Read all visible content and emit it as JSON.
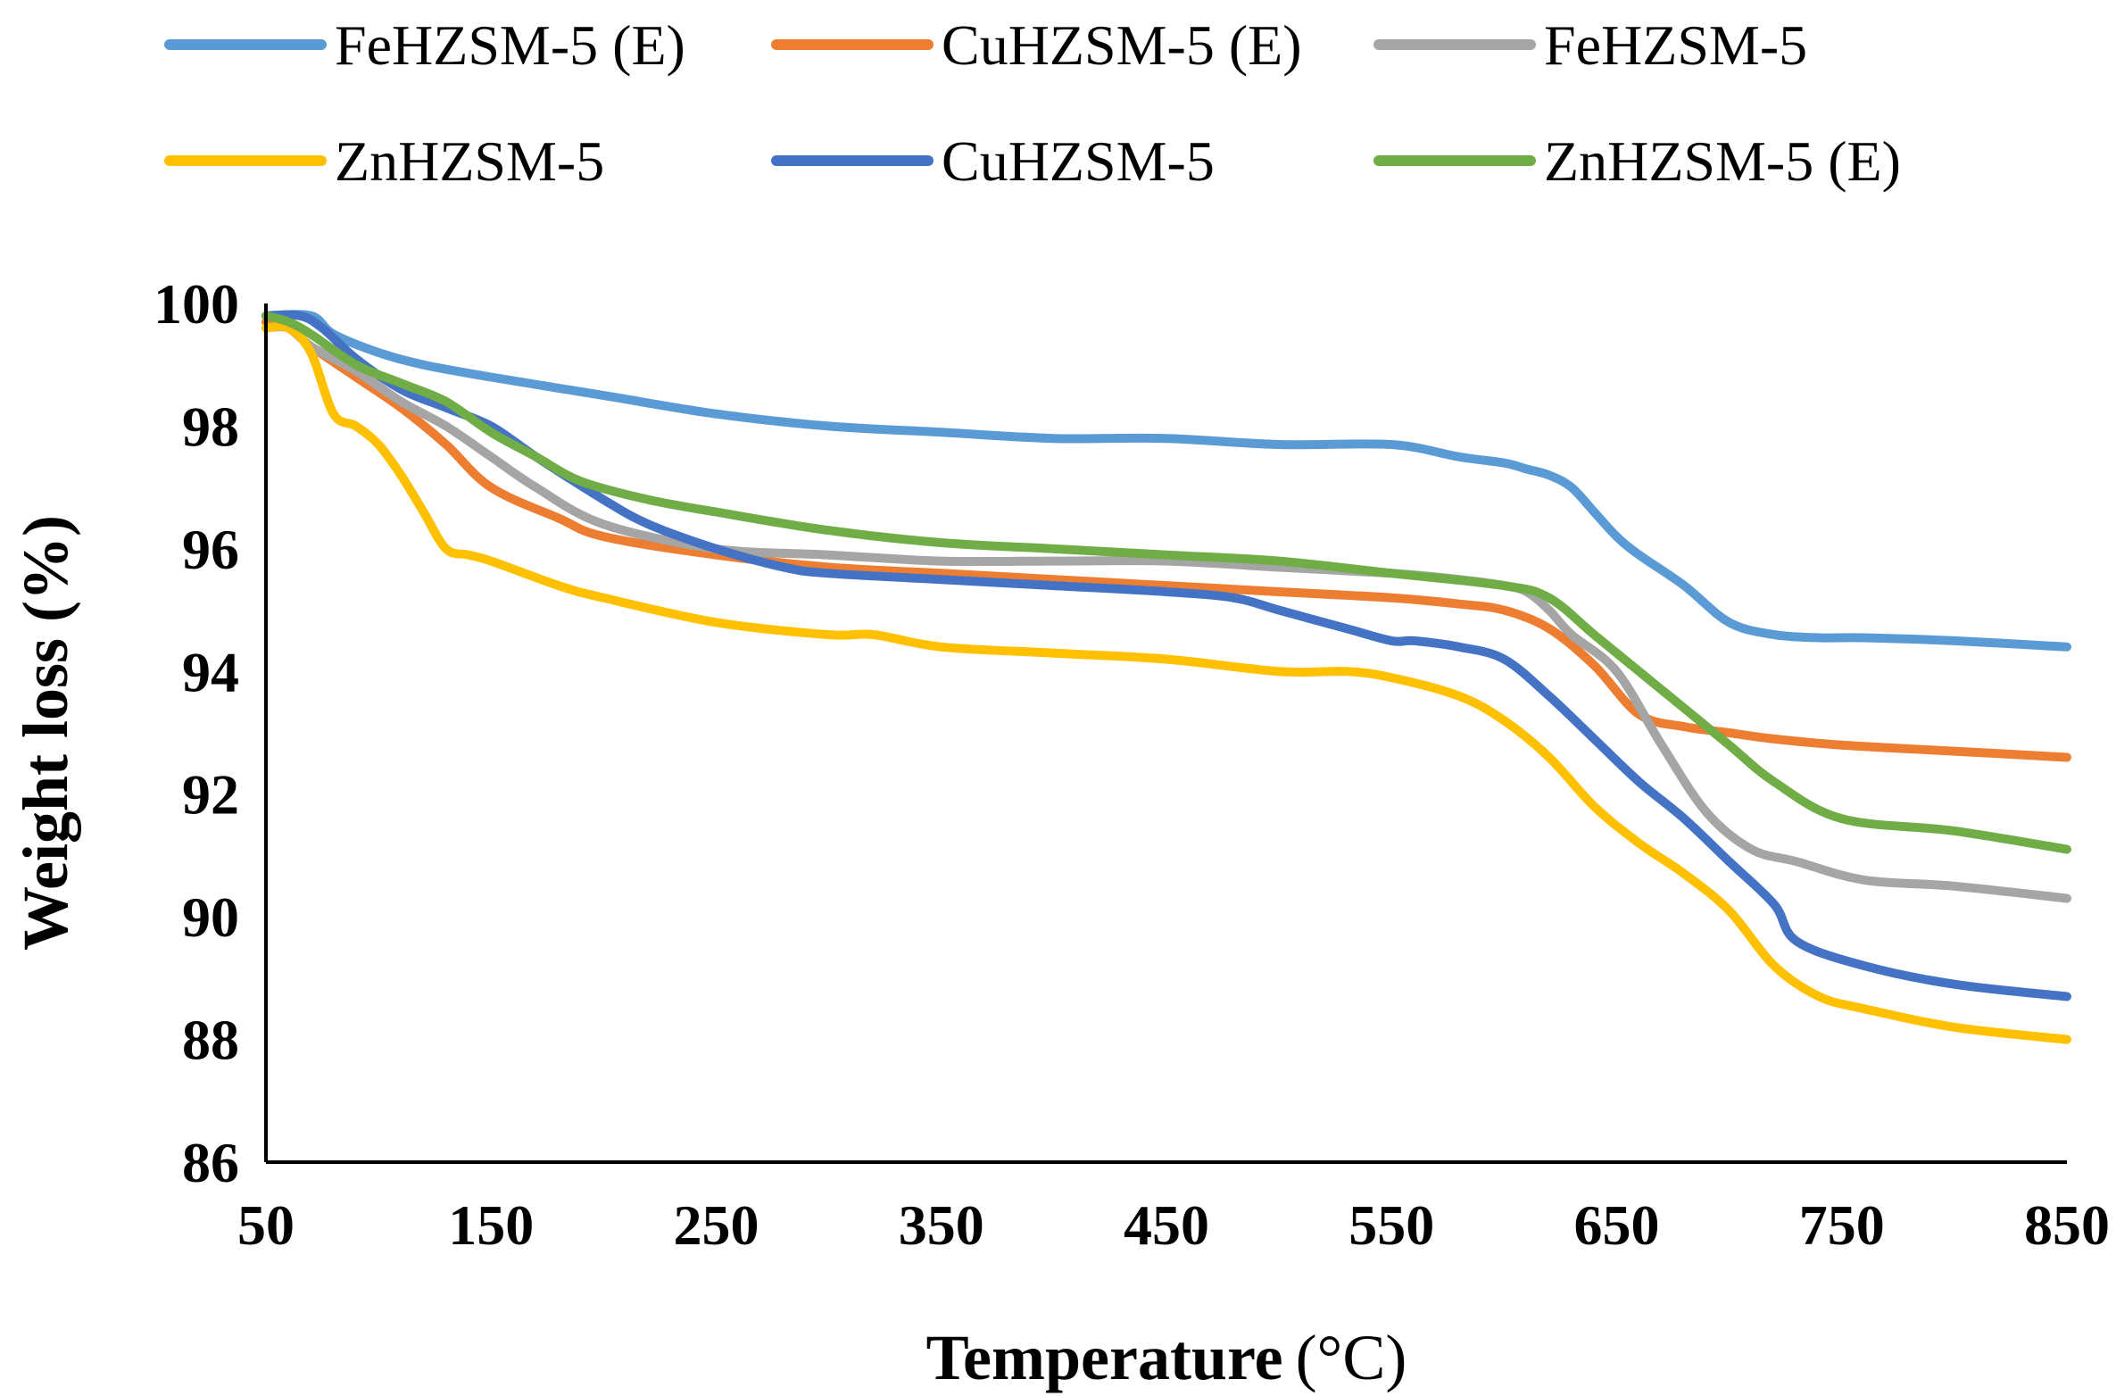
{
  "chart_data": {
    "type": "line",
    "title": "",
    "xlabel": "Temperature",
    "xlabel_unit": "(°C)",
    "ylabel": "Weight loss (%)",
    "xlim": [
      50,
      850
    ],
    "ylim": [
      86,
      100
    ],
    "xticks": [
      50,
      150,
      250,
      350,
      450,
      550,
      650,
      750,
      850
    ],
    "yticks": [
      86,
      88,
      90,
      92,
      94,
      96,
      98,
      100
    ],
    "xtick_labels": [
      "50",
      "150",
      "250",
      "350",
      "450",
      "550",
      "650",
      "750",
      "850"
    ],
    "ytick_labels": [
      "86",
      "88",
      "90",
      "92",
      "94",
      "96",
      "98",
      "100"
    ],
    "grid": false,
    "legend_position": "top",
    "series": [
      {
        "name": "FeHZSM-5 (E)",
        "color": "#5B9BD5",
        "x": [
          50,
          70,
          80,
          100,
          120,
          150,
          200,
          250,
          300,
          350,
          400,
          450,
          500,
          550,
          580,
          600,
          610,
          620,
          630,
          640,
          650,
          660,
          680,
          700,
          720,
          740,
          760,
          800,
          850
        ],
        "y": [
          99.8,
          99.8,
          99.5,
          99.2,
          99.0,
          98.8,
          98.5,
          98.2,
          98.0,
          97.9,
          97.8,
          97.8,
          97.7,
          97.7,
          97.5,
          97.4,
          97.3,
          97.2,
          97.0,
          96.6,
          96.2,
          95.9,
          95.4,
          94.8,
          94.6,
          94.55,
          94.55,
          94.5,
          94.4
        ]
      },
      {
        "name": "CuHZSM-5 (E)",
        "color": "#ED7D31",
        "x": [
          50,
          60,
          70,
          90,
          110,
          130,
          150,
          180,
          200,
          250,
          300,
          350,
          400,
          450,
          500,
          550,
          580,
          600,
          620,
          640,
          660,
          680,
          700,
          720,
          750,
          800,
          850
        ],
        "y": [
          99.7,
          99.6,
          99.3,
          98.8,
          98.3,
          97.7,
          97.0,
          96.5,
          96.2,
          95.9,
          95.7,
          95.6,
          95.5,
          95.4,
          95.3,
          95.2,
          95.1,
          95.0,
          94.7,
          94.1,
          93.3,
          93.1,
          93.0,
          92.9,
          92.8,
          92.7,
          92.6
        ]
      },
      {
        "name": "FeHZSM-5",
        "color": "#A5A5A5",
        "x": [
          50,
          60,
          70,
          90,
          110,
          130,
          150,
          170,
          200,
          250,
          300,
          350,
          400,
          450,
          500,
          550,
          580,
          600,
          610,
          620,
          630,
          650,
          670,
          690,
          710,
          730,
          760,
          800,
          850
        ],
        "y": [
          99.6,
          99.6,
          99.3,
          98.9,
          98.4,
          98.0,
          97.5,
          97.0,
          96.4,
          96.0,
          95.9,
          95.8,
          95.8,
          95.8,
          95.7,
          95.6,
          95.5,
          95.4,
          95.3,
          95.0,
          94.6,
          94.0,
          92.8,
          91.7,
          91.1,
          90.9,
          90.6,
          90.5,
          90.3
        ]
      },
      {
        "name": "ZnHZSM-5",
        "color": "#FFC000",
        "x": [
          50,
          60,
          70,
          80,
          90,
          100,
          110,
          120,
          130,
          140,
          150,
          180,
          200,
          250,
          300,
          320,
          350,
          400,
          450,
          500,
          530,
          550,
          580,
          600,
          620,
          640,
          660,
          680,
          700,
          720,
          740,
          760,
          800,
          850
        ],
        "y": [
          99.6,
          99.6,
          99.2,
          98.2,
          98.0,
          97.7,
          97.2,
          96.6,
          96.0,
          95.9,
          95.8,
          95.4,
          95.2,
          94.8,
          94.6,
          94.6,
          94.4,
          94.3,
          94.2,
          94.0,
          94.0,
          93.9,
          93.6,
          93.2,
          92.6,
          91.8,
          91.2,
          90.7,
          90.1,
          89.2,
          88.7,
          88.5,
          88.2,
          88.0
        ]
      },
      {
        "name": "CuHZSM-5",
        "color": "#4472C4",
        "x": [
          50,
          65,
          75,
          90,
          110,
          130,
          150,
          170,
          200,
          220,
          250,
          280,
          300,
          350,
          400,
          450,
          480,
          500,
          530,
          550,
          560,
          580,
          600,
          620,
          640,
          660,
          680,
          700,
          720,
          730,
          760,
          800,
          850
        ],
        "y": [
          99.8,
          99.8,
          99.6,
          99.1,
          98.6,
          98.3,
          98.0,
          97.5,
          96.8,
          96.4,
          96.0,
          95.7,
          95.6,
          95.5,
          95.4,
          95.3,
          95.2,
          95.0,
          94.7,
          94.5,
          94.5,
          94.4,
          94.2,
          93.6,
          92.9,
          92.2,
          91.6,
          90.9,
          90.2,
          89.6,
          89.2,
          88.9,
          88.7
        ]
      },
      {
        "name": "ZnHZSM-5 (E)",
        "color": "#70AD47",
        "x": [
          50,
          60,
          70,
          90,
          110,
          130,
          150,
          170,
          190,
          220,
          250,
          300,
          350,
          400,
          450,
          500,
          550,
          600,
          620,
          640,
          660,
          680,
          700,
          720,
          750,
          800,
          850
        ],
        "y": [
          99.8,
          99.7,
          99.5,
          99.0,
          98.7,
          98.4,
          97.9,
          97.5,
          97.1,
          96.8,
          96.6,
          96.3,
          96.1,
          96.0,
          95.9,
          95.8,
          95.6,
          95.4,
          95.2,
          94.6,
          94.0,
          93.4,
          92.8,
          92.2,
          91.6,
          91.4,
          91.1
        ]
      }
    ]
  }
}
